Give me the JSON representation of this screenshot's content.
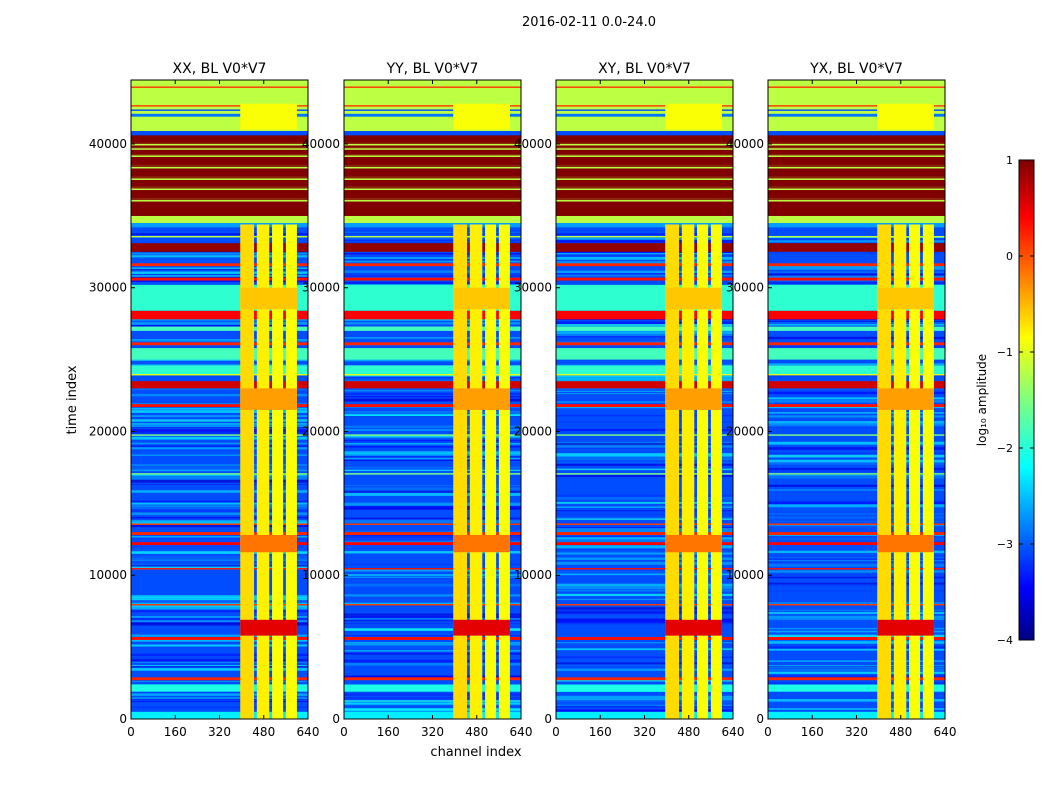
{
  "chart_data": {
    "type": "heatmap",
    "title": "2016-02-11 0.0-24.0",
    "xlabel": "channel index",
    "ylabel": "time index",
    "xlim": [
      0,
      640
    ],
    "ylim": [
      0,
      44450
    ],
    "xticks": [
      "0",
      "160",
      "320",
      "480",
      "640"
    ],
    "yticks": [
      "0",
      "10000",
      "20000",
      "30000",
      "40000"
    ],
    "panels": [
      {
        "title": "XX, BL V0*V7"
      },
      {
        "title": "YY, BL V0*V7"
      },
      {
        "title": "XY, BL V0*V7"
      },
      {
        "title": "YX, BL V0*V7"
      }
    ],
    "colorbar": {
      "label": "log₁₀ amplitude",
      "range": [
        -4,
        1
      ],
      "colormap": "jet",
      "ticks": [
        "1",
        "0",
        "−1",
        "−2",
        "−3",
        "−4"
      ]
    },
    "background_value": -3.0,
    "row_bands": [
      [
        0,
        500,
        -2.2
      ],
      [
        1900,
        2400,
        -2.0
      ],
      [
        2700,
        2900,
        0.2
      ],
      [
        5500,
        5700,
        0.3
      ],
      [
        7900,
        8000,
        0.1
      ],
      [
        10400,
        10500,
        0.3
      ],
      [
        12100,
        12300,
        0.4
      ],
      [
        12800,
        13000,
        0.2
      ],
      [
        13500,
        13600,
        0.1
      ],
      [
        17000,
        17100,
        -1.5
      ],
      [
        19700,
        19800,
        -1.5
      ],
      [
        21700,
        21900,
        0.3
      ],
      [
        23000,
        23500,
        0.6
      ],
      [
        23900,
        24000,
        -1.0
      ],
      [
        24000,
        24600,
        -1.9
      ],
      [
        25000,
        25800,
        -1.8
      ],
      [
        26000,
        26200,
        0.2
      ],
      [
        27000,
        27300,
        -1.8
      ],
      [
        27800,
        28400,
        0.4
      ],
      [
        28400,
        30200,
        -1.9
      ],
      [
        30500,
        30700,
        0.3
      ],
      [
        31500,
        31700,
        0.2
      ],
      [
        32500,
        33100,
        0.9
      ],
      [
        33500,
        33600,
        -1.2
      ],
      [
        34200,
        34500,
        -2.6
      ],
      [
        34500,
        35000,
        -1.2
      ],
      [
        35000,
        40600,
        1.0
      ],
      [
        36100,
        36250,
        -1.2
      ],
      [
        36900,
        37050,
        -1.2
      ],
      [
        37600,
        37750,
        -1.2
      ],
      [
        38400,
        38550,
        -1.2
      ],
      [
        39200,
        39300,
        -1.2
      ],
      [
        39700,
        39800,
        -1.2
      ],
      [
        40000,
        40100,
        -1.2
      ],
      [
        40600,
        40900,
        -3.0
      ],
      [
        40900,
        44450,
        -1.2
      ],
      [
        41900,
        42100,
        -2.8
      ],
      [
        42300,
        42400,
        -3.0
      ],
      [
        42600,
        42700,
        0.1
      ],
      [
        43900,
        44000,
        0.1
      ]
    ],
    "column_bands": [
      [
        395,
        445,
        0,
        34400,
        -0.7
      ],
      [
        455,
        500,
        0,
        34400,
        -0.8
      ],
      [
        510,
        550,
        0,
        34400,
        -0.9
      ],
      [
        560,
        600,
        0,
        34400,
        -0.9
      ],
      [
        395,
        600,
        5800,
        6900,
        0.5
      ],
      [
        395,
        600,
        11600,
        12800,
        -0.2
      ],
      [
        395,
        600,
        21500,
        23000,
        -0.4
      ],
      [
        395,
        600,
        28500,
        30000,
        -0.6
      ],
      [
        395,
        600,
        41000,
        42800,
        -0.9
      ]
    ]
  }
}
